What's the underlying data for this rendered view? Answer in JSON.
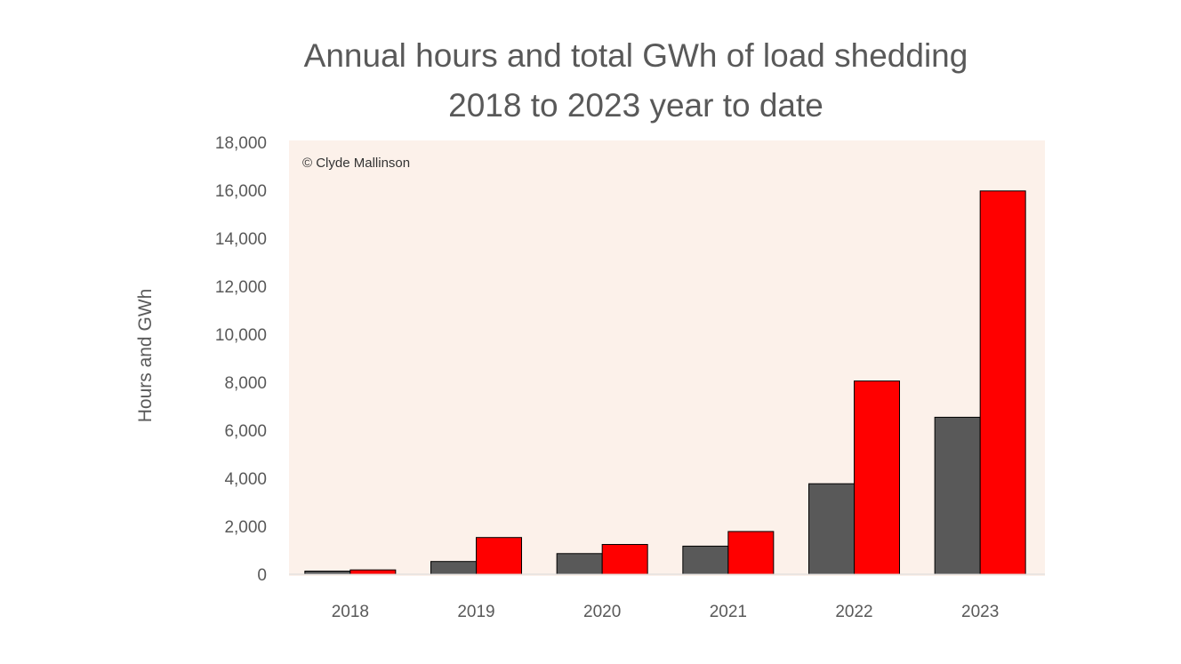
{
  "chart_data": {
    "type": "bar",
    "title": "Annual hours and total GWh of load shedding",
    "subtitle": "2018 to 2023 year to date",
    "xlabel": "",
    "ylabel": "Hours and GWh",
    "annotation": "© Clyde Mallinson",
    "categories": [
      "2018",
      "2019",
      "2020",
      "2021",
      "2022",
      "2023"
    ],
    "series": [
      {
        "color": "#595959",
        "values": [
          130,
          530,
          860,
          1170,
          3770,
          6540
        ]
      },
      {
        "color": "#ff0000",
        "values": [
          180,
          1530,
          1240,
          1780,
          8050,
          15970
        ]
      }
    ],
    "ylim": [
      0,
      18000
    ],
    "yticks": [
      0,
      2000,
      4000,
      6000,
      8000,
      10000,
      12000,
      14000,
      16000,
      18000
    ],
    "ytick_labels": [
      "0",
      "2,000",
      "4,000",
      "6,000",
      "8,000",
      "10,000",
      "12,000",
      "14,000",
      "16,000",
      "18,000"
    ],
    "grid": false,
    "legend": "none",
    "plot_background": "#fcf1ea"
  }
}
